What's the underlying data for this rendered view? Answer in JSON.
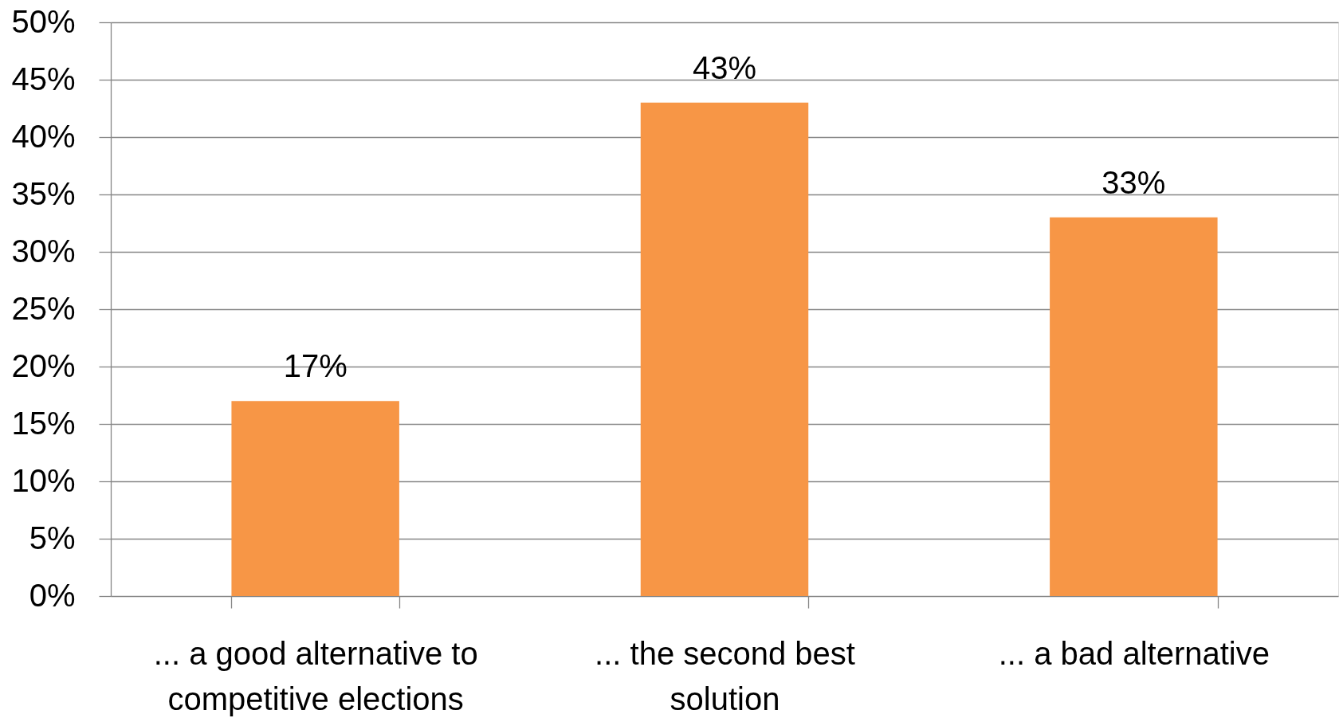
{
  "chart_data": {
    "type": "bar",
    "categories": [
      "... a good alternative to competitive elections",
      "... the second best solution",
      "... a bad alternative"
    ],
    "values": [
      17,
      43,
      33
    ],
    "color": "#f79646",
    "value_labels": [
      "17%",
      "43%",
      "33%"
    ],
    "ylim": [
      0,
      50
    ],
    "yticks": [
      {
        "value": 0,
        "label": "0%"
      },
      {
        "value": 5,
        "label": "5%"
      },
      {
        "value": 10,
        "label": "10%"
      },
      {
        "value": 15,
        "label": "15%"
      },
      {
        "value": 20,
        "label": "20%"
      },
      {
        "value": 25,
        "label": "25%"
      },
      {
        "value": 30,
        "label": "30%"
      },
      {
        "value": 35,
        "label": "35%"
      },
      {
        "value": 40,
        "label": "40%"
      },
      {
        "value": 45,
        "label": "45%"
      },
      {
        "value": 50,
        "label": "50%"
      }
    ],
    "grid": "y"
  }
}
